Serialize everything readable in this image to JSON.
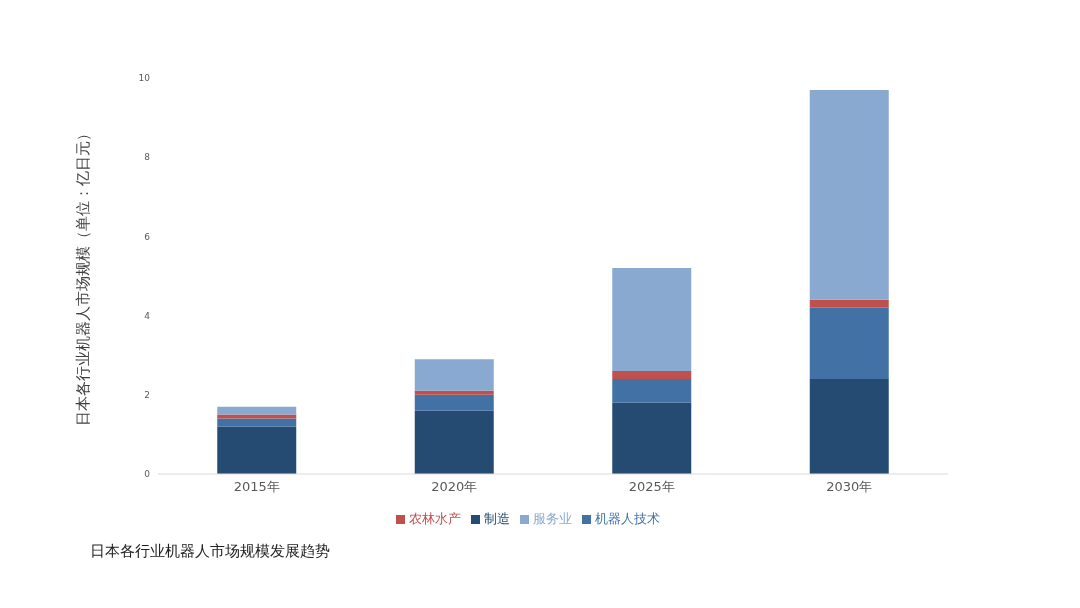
{
  "chart_data": {
    "type": "bar",
    "stacked": true,
    "title": "日本各行业机器人市场规模发展趋势",
    "ylabel": "日本各行业机器人市场规模（单位：亿日元）",
    "categories": [
      "2015年",
      "2020年",
      "2025年",
      "2030年"
    ],
    "series": [
      {
        "name": "制造",
        "color": "#264b73",
        "values": [
          1.2,
          1.6,
          1.8,
          2.4
        ]
      },
      {
        "name": "机器人技术",
        "color": "#4271a5",
        "values": [
          0.2,
          0.4,
          0.6,
          1.8
        ]
      },
      {
        "name": "农林水产",
        "color": "#c0504d",
        "values": [
          0.1,
          0.1,
          0.2,
          0.2
        ]
      },
      {
        "name": "服务业",
        "color": "#89a9d0",
        "values": [
          0.2,
          0.8,
          2.6,
          5.3
        ]
      }
    ],
    "ylim": [
      0,
      10
    ],
    "yticks": [
      0,
      2,
      4,
      6,
      8,
      10
    ],
    "grid": false,
    "legend": "bottom"
  }
}
